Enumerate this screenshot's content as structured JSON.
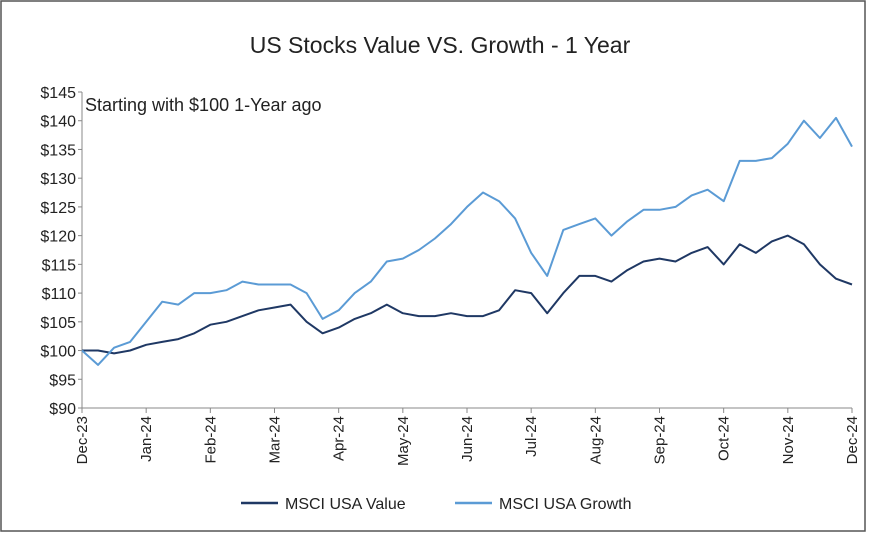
{
  "chart_data": {
    "type": "line",
    "title": "US Stocks Value VS. Growth - 1 Year",
    "annotation": "Starting with $100 1-Year ago",
    "categories": [
      "Dec-23",
      null,
      null,
      null,
      "Jan-24",
      null,
      null,
      null,
      "Feb-24",
      null,
      null,
      null,
      "Mar-24",
      null,
      null,
      null,
      "Apr-24",
      null,
      null,
      null,
      "May-24",
      null,
      null,
      null,
      "Jun-24",
      null,
      null,
      null,
      "Jul-24",
      null,
      null,
      null,
      "Aug-24",
      null,
      null,
      null,
      "Sep-24",
      null,
      null,
      null,
      "Oct-24",
      null,
      null,
      null,
      "Nov-24",
      null,
      null,
      null,
      "Dec-24"
    ],
    "series": [
      {
        "name": "MSCI USA Value",
        "color": "#1f3864",
        "values": [
          100,
          100,
          99.5,
          100,
          101,
          101.5,
          102,
          103,
          104.5,
          105,
          106,
          107,
          107.5,
          108,
          105,
          103,
          104,
          105.5,
          106.5,
          108,
          106.5,
          106,
          106,
          106.5,
          106,
          106,
          107,
          110.5,
          110,
          106.5,
          110,
          113,
          113,
          112,
          114,
          115.5,
          116,
          115.5,
          117,
          118,
          115,
          118.5,
          117,
          119,
          120,
          118.5,
          115,
          112.5,
          111.5
        ]
      },
      {
        "name": "MSCI USA Growth",
        "color": "#5b9bd5",
        "values": [
          100,
          97.5,
          100.5,
          101.5,
          105,
          108.5,
          108,
          110,
          110,
          110.5,
          112,
          111.5,
          111.5,
          111.5,
          110,
          105.5,
          107,
          110,
          112,
          115.5,
          116,
          117.5,
          119.5,
          122,
          125,
          127.5,
          126,
          123,
          117,
          113,
          121,
          122,
          123,
          120,
          122.5,
          124.5,
          124.5,
          125,
          127,
          128,
          126,
          133,
          133,
          133.5,
          136,
          140,
          137,
          140.5,
          135.5
        ]
      }
    ],
    "ylim": [
      90,
      145
    ],
    "yticks": [
      {
        "value": 90,
        "label": "$90"
      },
      {
        "value": 95,
        "label": "$95"
      },
      {
        "value": 100,
        "label": "$100"
      },
      {
        "value": 105,
        "label": "$105"
      },
      {
        "value": 110,
        "label": "$110"
      },
      {
        "value": 115,
        "label": "$115"
      },
      {
        "value": 120,
        "label": "$120"
      },
      {
        "value": 125,
        "label": "$125"
      },
      {
        "value": 130,
        "label": "$130"
      },
      {
        "value": 135,
        "label": "$135"
      },
      {
        "value": 140,
        "label": "$140"
      },
      {
        "value": 145,
        "label": "$145"
      }
    ],
    "grid": false,
    "legend": "bottom"
  }
}
